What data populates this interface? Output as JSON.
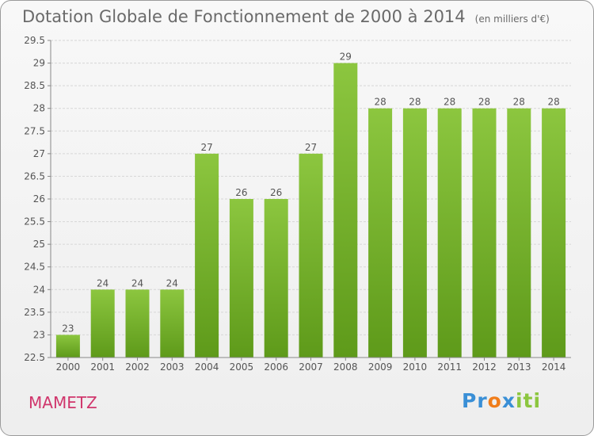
{
  "chart_data": {
    "type": "bar",
    "title": "Dotation Globale de Fonctionnement de 2000 à 2014",
    "subtitle": "(en milliers d'€)",
    "categories": [
      "2000",
      "2001",
      "2002",
      "2003",
      "2004",
      "2005",
      "2006",
      "2007",
      "2008",
      "2009",
      "2010",
      "2011",
      "2012",
      "2013",
      "2014"
    ],
    "values": [
      23,
      24,
      24,
      24,
      27,
      26,
      26,
      27,
      29,
      28,
      28,
      28,
      28,
      28,
      28
    ],
    "ylim": [
      22.5,
      29.5
    ],
    "yticks": [
      22.5,
      23,
      23.5,
      24,
      24.5,
      25,
      25.5,
      26,
      26.5,
      27,
      27.5,
      28,
      28.5,
      29,
      29.5
    ],
    "grid": true,
    "bar_color": "#8cc63f",
    "bar_color_dark": "#5e9a1a"
  },
  "footer": {
    "town": "MAMETZ",
    "logo": "Proxiti"
  }
}
